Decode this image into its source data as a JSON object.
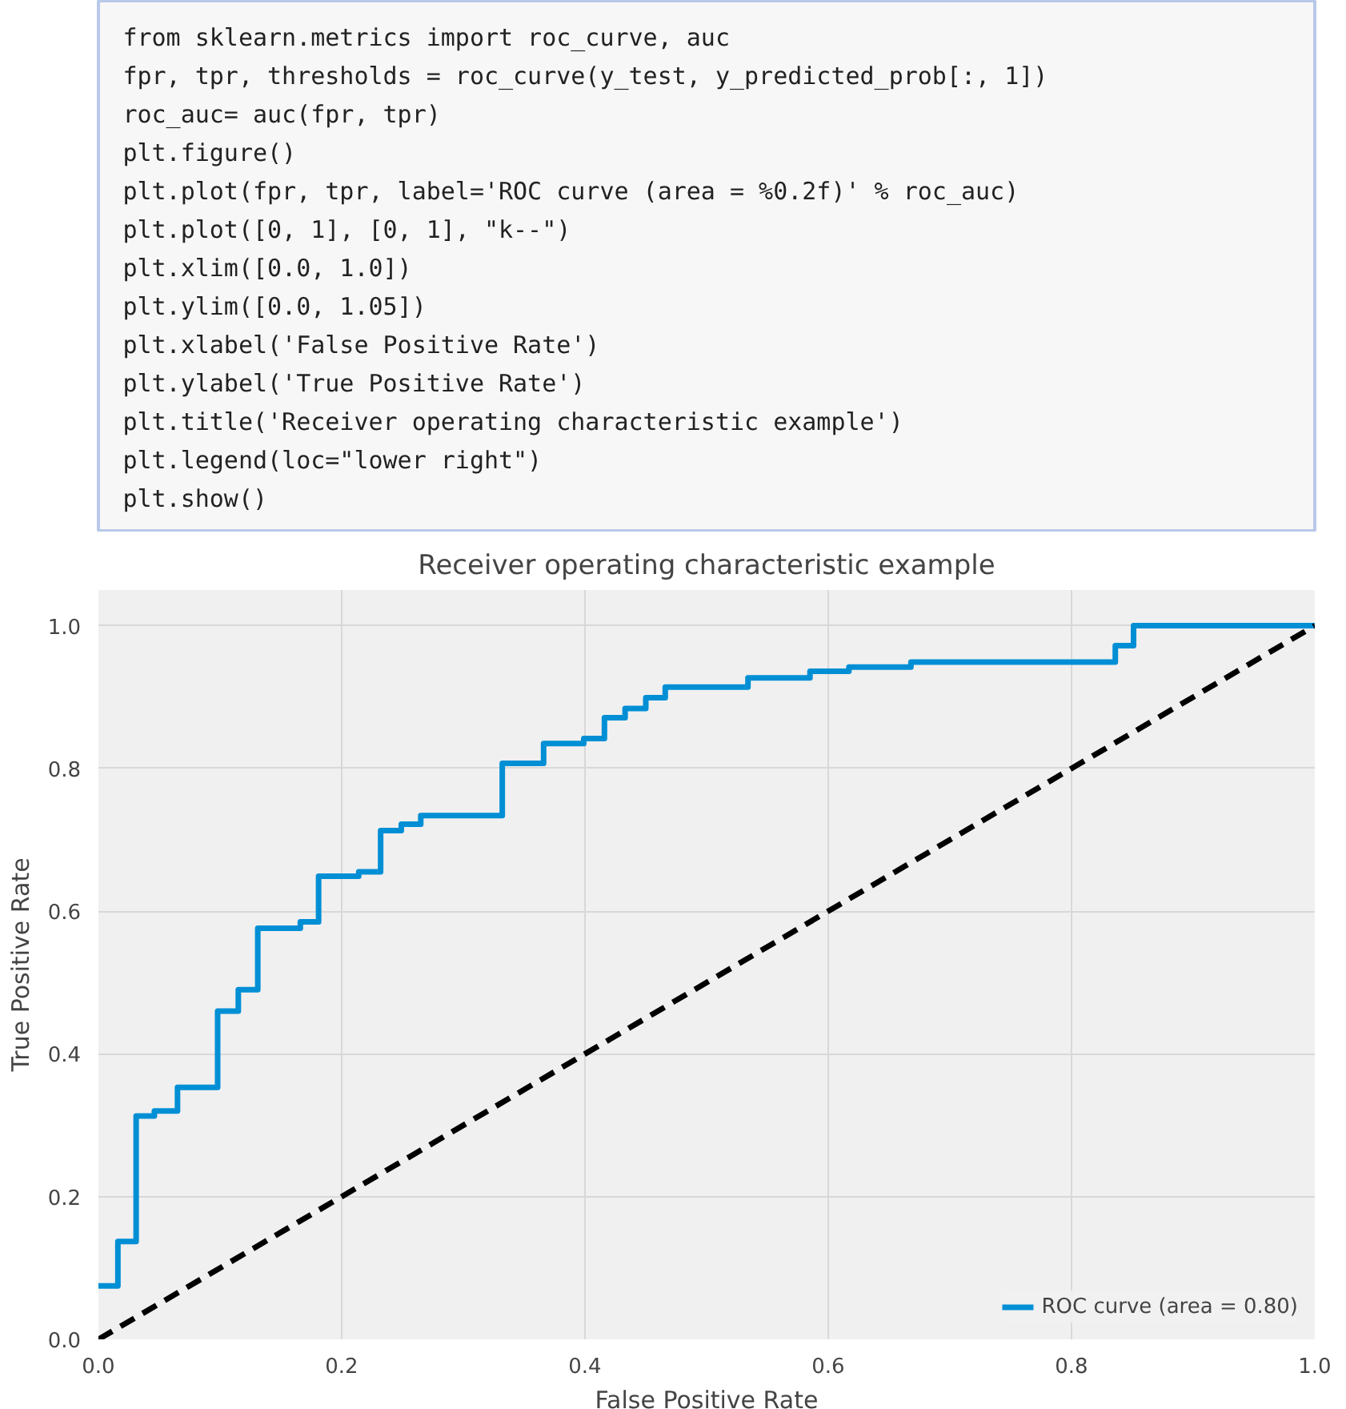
{
  "chart_data": {
    "type": "step",
    "title": "Receiver operating characteristic example",
    "xlabel": "False Positive Rate",
    "ylabel": "True Positive Rate",
    "annotations": [
      "from sklearn.metrics import roc_curve, auc",
      "fpr, tpr, thresholds = roc_curve(y_test, y_predicted_prob[:, 1])",
      "roc_auc= auc(fpr, tpr)",
      "plt.figure()",
      "plt.plot(fpr, tpr, label='ROC curve (area = %0.2f)' % roc_auc)",
      "plt.plot([0, 1], [0, 1], \"k--\")",
      "plt.xlim([0.0, 1.0])",
      "plt.ylim([0.0, 1.05])",
      "plt.xlabel('False Positive Rate')",
      "plt.ylabel('True Positive Rate')",
      "plt.title('Receiver operating characteristic example')",
      "plt.legend(loc=\"lower right\")",
      "plt.show()"
    ],
    "series": [
      {
        "name": "ROC curve (area = 0.80)",
        "color": "#008fd5",
        "x": [
          0.0,
          0.016,
          0.031,
          0.046,
          0.065,
          0.098,
          0.115,
          0.131,
          0.166,
          0.181,
          0.214,
          0.232,
          0.249,
          0.265,
          0.332,
          0.366,
          0.399,
          0.416,
          0.433,
          0.45,
          0.466,
          0.534,
          0.585,
          0.617,
          0.668,
          0.836,
          0.851,
          1.0
        ],
        "values": [
          0.075,
          0.137,
          0.313,
          0.32,
          0.353,
          0.46,
          0.49,
          0.576,
          0.585,
          0.649,
          0.655,
          0.713,
          0.722,
          0.734,
          0.807,
          0.835,
          0.842,
          0.871,
          0.884,
          0.899,
          0.914,
          0.927,
          0.936,
          0.942,
          0.949,
          0.972,
          1.0,
          1.0
        ]
      },
      {
        "type": "line",
        "color": "#000000",
        "line_style": "dashed",
        "x": [
          0,
          1
        ],
        "values": [
          0,
          1
        ]
      }
    ],
    "xlim": [
      0,
      1
    ],
    "ylim": [
      0,
      1.05
    ],
    "xticks": [
      {
        "value": 0,
        "label": "0.0"
      },
      0.2,
      0.4,
      0.6,
      0.8,
      {
        "value": 1,
        "label": "1.0"
      }
    ],
    "yticks": [
      {
        "value": 0,
        "label": "0.0"
      },
      0.2,
      0.4,
      0.6,
      0.8,
      {
        "value": 1,
        "label": "1.0"
      }
    ],
    "grid": true,
    "legend": "bottom right"
  }
}
